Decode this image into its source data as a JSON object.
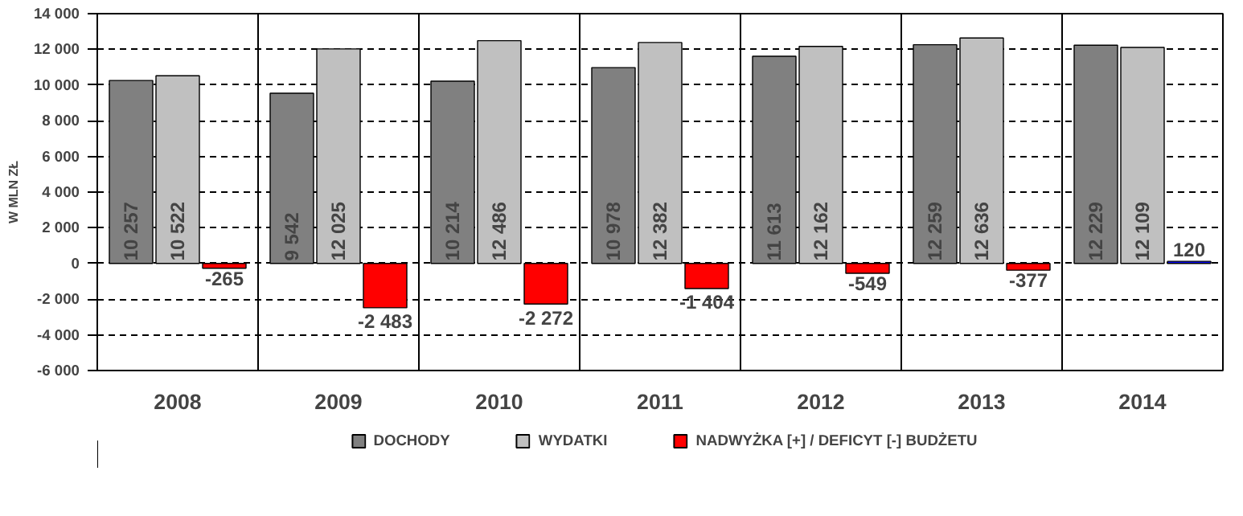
{
  "chart_data": {
    "type": "bar",
    "ylabel": "W MLN ZŁ",
    "categories": [
      "2008",
      "2009",
      "2010",
      "2011",
      "2012",
      "2013",
      "2014"
    ],
    "series": [
      {
        "name": "DOCHODY",
        "color": "#808080",
        "values": [
          10257,
          9542,
          10214,
          10978,
          11613,
          12259,
          12229
        ],
        "value_labels": [
          "10 257",
          "9 542",
          "10 214",
          "10 978",
          "11 613",
          "12 259",
          "12 229"
        ]
      },
      {
        "name": "WYDATKI",
        "color": "#c0c0c0",
        "values": [
          10522,
          12025,
          12486,
          12382,
          12162,
          12636,
          12109
        ],
        "value_labels": [
          "10 522",
          "12 025",
          "12 486",
          "12 382",
          "12 162",
          "12 636",
          "12 109"
        ]
      },
      {
        "name": "NADWYŻKA [+] / DEFICYT [-] BUDŻETU",
        "colors": [
          "#ff0000",
          "#ff0000",
          "#ff0000",
          "#ff0000",
          "#ff0000",
          "#ff0000",
          "#0000ff"
        ],
        "values": [
          -265,
          -2483,
          -2272,
          -1404,
          -549,
          -377,
          120
        ],
        "value_labels": [
          "-265",
          "-2 483",
          "-2 272",
          "-1 404",
          "-549",
          "-377",
          "120"
        ]
      }
    ],
    "ylim": [
      -6000,
      14000
    ],
    "yticks": [
      {
        "value": -6000,
        "label": "-6 000"
      },
      {
        "value": -4000,
        "label": "-4 000"
      },
      {
        "value": -2000,
        "label": "-2 000"
      },
      0,
      {
        "value": 2000,
        "label": "2 000"
      },
      {
        "value": 4000,
        "label": "4 000"
      },
      {
        "value": 6000,
        "label": "6 000"
      },
      {
        "value": 8000,
        "label": "8 000"
      },
      {
        "value": 10000,
        "label": "10 000"
      },
      {
        "value": 12000,
        "label": "12 000"
      },
      {
        "value": 14000,
        "label": "14 000"
      }
    ],
    "grid": "y",
    "legend": "bottom"
  }
}
